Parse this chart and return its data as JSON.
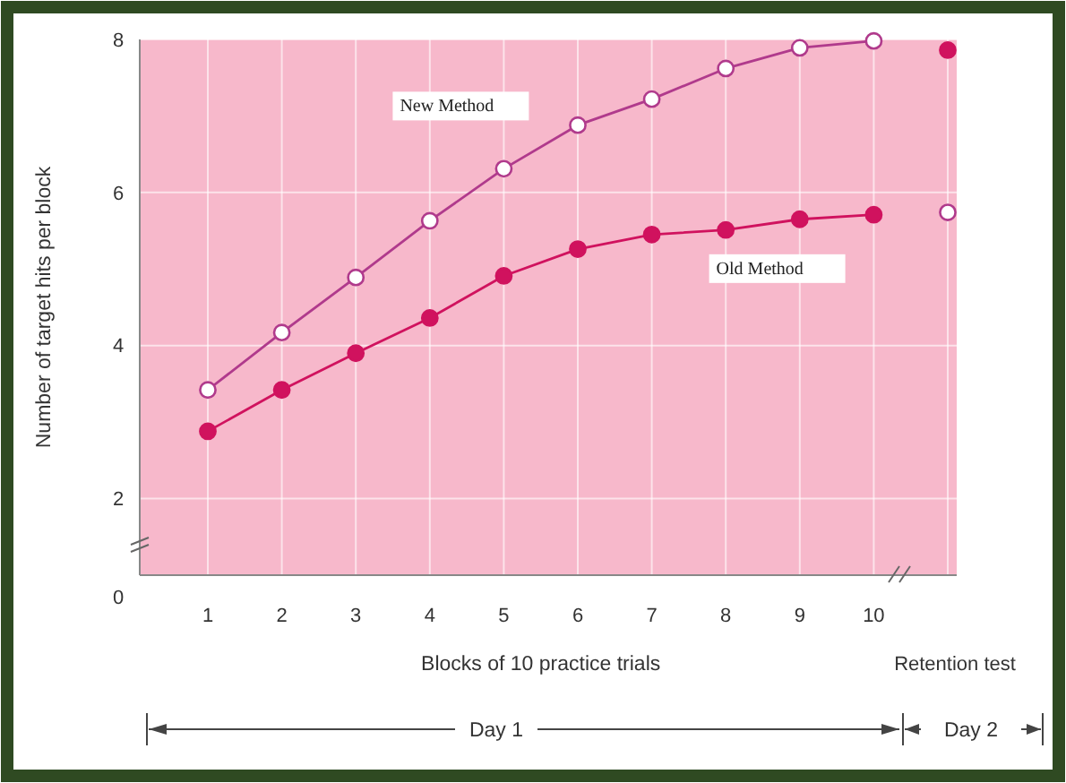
{
  "chart_data": {
    "type": "line",
    "xlabel": "Blocks of 10 practice trials",
    "ylabel": "Number of target hits per block",
    "categories": [
      "1",
      "2",
      "3",
      "4",
      "5",
      "6",
      "7",
      "8",
      "9",
      "10",
      null
    ],
    "ylim": [
      1,
      8
    ],
    "yticks": [
      2,
      4,
      6,
      8
    ],
    "grid": true,
    "marker": "circle",
    "line_style": "solid",
    "series": [
      {
        "name": "New Method",
        "color": "#b03a8c",
        "colors": [
          "#ffffff",
          "#ffffff",
          "#ffffff",
          "#ffffff",
          "#ffffff",
          "#ffffff",
          "#ffffff",
          "#ffffff",
          "#ffffff",
          "#ffffff",
          null
        ],
        "values": [
          3.42,
          4.17,
          4.89,
          5.63,
          6.31,
          6.88,
          7.22,
          7.62,
          7.89,
          7.98,
          null
        ]
      },
      {
        "name": "Old Method",
        "color": "#d0125e",
        "values": [
          2.88,
          3.42,
          3.9,
          4.36,
          4.91,
          5.26,
          5.45,
          5.51,
          5.65,
          5.71,
          null
        ]
      },
      {
        "type": "scatter",
        "color": "#b03a8c",
        "colors": [
          null,
          null,
          null,
          null,
          null,
          null,
          null,
          null,
          null,
          null,
          "#ffffff"
        ],
        "values": [
          null,
          null,
          null,
          null,
          null,
          null,
          null,
          null,
          null,
          null,
          5.74
        ]
      },
      {
        "type": "scatter",
        "color": "#d0125e",
        "values": [
          null,
          null,
          null,
          null,
          null,
          null,
          null,
          null,
          null,
          null,
          7.86
        ]
      }
    ],
    "annotations": [
      "0",
      "Retention test",
      "Day 1",
      "Day 2"
    ]
  }
}
